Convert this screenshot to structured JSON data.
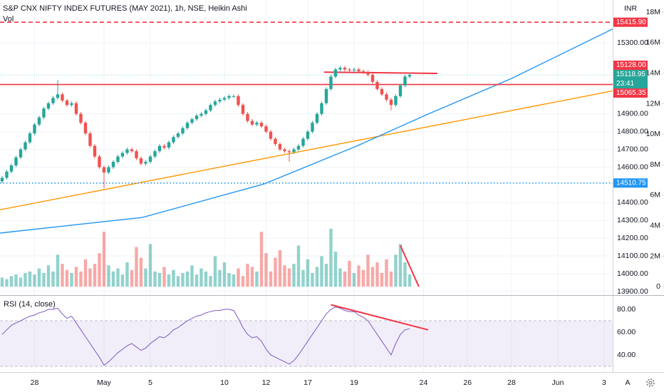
{
  "chart_data": {
    "type": "candlestick",
    "title": "S&P CNX NIFTY INDEX FUTURES (MAY 2021), 1h, NSE, Heikin Ashi",
    "currency": "INR",
    "grid": true,
    "xlim": [
      -0.46,
      131.85
    ],
    "xticks": [
      {
        "value": 7,
        "label": "28"
      },
      {
        "value": 22,
        "label": "May"
      },
      {
        "value": 32,
        "label": "5"
      },
      {
        "value": 48,
        "label": "10"
      },
      {
        "value": 57,
        "label": "12"
      },
      {
        "value": 66,
        "label": "17"
      },
      {
        "value": 76,
        "label": "19"
      },
      {
        "value": 91,
        "label": "24"
      },
      {
        "value": 100.5,
        "label": "26"
      },
      {
        "value": 110,
        "label": "28"
      },
      {
        "value": 120,
        "label": "Jun"
      },
      {
        "value": 130,
        "label": "3"
      }
    ],
    "ylim": [
      13884,
      15541
    ],
    "yticks": [
      {
        "value": 15300,
        "label": "15300.00"
      },
      {
        "value": 14900,
        "label": "14900.00"
      },
      {
        "value": 14800,
        "label": "14800.00"
      },
      {
        "value": 14700,
        "label": "14700.00"
      },
      {
        "value": 14600,
        "label": "14600.00"
      },
      {
        "value": 14400,
        "label": "14400.00"
      },
      {
        "value": 14300,
        "label": "14300.00"
      },
      {
        "value": 14200,
        "label": "14200.00"
      },
      {
        "value": 14100,
        "label": "14100.00"
      },
      {
        "value": 14000,
        "label": "14000.00"
      },
      {
        "value": 13900,
        "label": "13900.00"
      }
    ],
    "up_color": "#26a69a",
    "down_color": "#ef5350",
    "open": [
      14520,
      14540,
      14575,
      14610,
      14655,
      14700,
      14740,
      14790,
      14840,
      14880,
      14930,
      14960,
      14990,
      15010,
      14975,
      14950,
      14960,
      14900,
      14850,
      14790,
      14720,
      14660,
      14600,
      14570,
      14600,
      14630,
      14660,
      14680,
      14700,
      14690,
      14650,
      14620,
      14630,
      14660,
      14690,
      14720,
      14710,
      14740,
      14770,
      14790,
      14820,
      14850,
      14870,
      14890,
      14900,
      14920,
      14950,
      14970,
      14980,
      14990,
      15000,
      15000,
      14950,
      14900,
      14860,
      14840,
      14850,
      14830,
      14800,
      14760,
      14730,
      14700,
      14690,
      14685,
      14700,
      14720,
      14760,
      14800,
      14850,
      14900,
      14960,
      15040,
      15110,
      15150,
      15160,
      15150,
      15145,
      15150,
      15140,
      15135,
      15120,
      15080,
      15040,
      15010,
      14980,
      14950,
      15000,
      15060,
      15110
    ],
    "high": [
      14550,
      14585,
      14620,
      14665,
      14710,
      14750,
      14800,
      14850,
      14890,
      14940,
      14970,
      15000,
      15090,
      15020,
      14985,
      14970,
      14970,
      14910,
      14860,
      14800,
      14730,
      14670,
      14610,
      14610,
      14640,
      14670,
      14690,
      14710,
      14710,
      14700,
      14660,
      14640,
      14670,
      14700,
      14730,
      14730,
      14750,
      14780,
      14800,
      14830,
      14860,
      14880,
      14900,
      14910,
      14930,
      14960,
      14980,
      14990,
      15000,
      15010,
      15010,
      15010,
      14960,
      14910,
      14870,
      14860,
      14860,
      14840,
      14810,
      14770,
      14740,
      14710,
      14700,
      14710,
      14730,
      14770,
      14810,
      14860,
      14910,
      14970,
      15050,
      15120,
      15160,
      15170,
      15170,
      15160,
      15160,
      15160,
      15150,
      15145,
      15130,
      15090,
      15050,
      15020,
      14990,
      15010,
      15070,
      15120,
      15130
    ],
    "low": [
      14510,
      14530,
      14565,
      14600,
      14645,
      14690,
      14730,
      14780,
      14830,
      14870,
      14920,
      14950,
      14980,
      14965,
      14940,
      14940,
      14890,
      14840,
      14780,
      14710,
      14650,
      14590,
      14480,
      14560,
      14590,
      14620,
      14650,
      14670,
      14680,
      14640,
      14610,
      14610,
      14620,
      14650,
      14680,
      14700,
      14700,
      14730,
      14760,
      14780,
      14810,
      14840,
      14860,
      14880,
      14890,
      14910,
      14940,
      14960,
      14970,
      14980,
      14990,
      14940,
      14890,
      14850,
      14830,
      14830,
      14820,
      14790,
      14750,
      14720,
      14690,
      14680,
      14630,
      14675,
      14690,
      14710,
      14750,
      14790,
      14840,
      14890,
      14950,
      15030,
      15100,
      15140,
      15140,
      15135,
      15135,
      15130,
      15125,
      15110,
      15070,
      15030,
      15000,
      14970,
      14920,
      14940,
      14990,
      15050,
      15100
    ],
    "close": [
      14540,
      14575,
      14610,
      14655,
      14700,
      14740,
      14790,
      14840,
      14880,
      14930,
      14960,
      14990,
      15010,
      14975,
      14950,
      14960,
      14900,
      14850,
      14790,
      14720,
      14660,
      14600,
      14570,
      14600,
      14630,
      14660,
      14680,
      14700,
      14690,
      14650,
      14620,
      14630,
      14660,
      14690,
      14720,
      14710,
      14740,
      14770,
      14790,
      14820,
      14850,
      14870,
      14890,
      14900,
      14920,
      14950,
      14970,
      14980,
      14990,
      15000,
      15000,
      14950,
      14900,
      14860,
      14840,
      14850,
      14830,
      14800,
      14760,
      14730,
      14700,
      14690,
      14685,
      14700,
      14720,
      14760,
      14800,
      14850,
      14900,
      14960,
      15040,
      15110,
      15150,
      15160,
      15150,
      15145,
      15150,
      15140,
      15135,
      15120,
      15080,
      15040,
      15010,
      14980,
      14950,
      15000,
      15060,
      15110,
      15119
    ],
    "price_lines": [
      {
        "value": 15415.9,
        "label": "15415.90",
        "color": "#f23645",
        "style": "dashed"
      },
      {
        "value": 15065.35,
        "color": "#f23645",
        "style": "solid"
      },
      {
        "value": 14510.75,
        "color": "#2196f3",
        "style": "dotted"
      }
    ],
    "last_price": {
      "value": 15118.95,
      "countdown": "23:41",
      "color": "#26a69a"
    },
    "trendlines": [
      {
        "color": "#ff9800",
        "x": [
          -0.46,
          132
        ],
        "y": [
          14360,
          15030
        ]
      },
      {
        "color": "#2196f3",
        "x": [
          -0.46,
          30.3,
          56.5,
          76.5,
          92,
          110,
          132
        ],
        "y": [
          14229,
          14317,
          14505,
          14718,
          14899,
          15099,
          15380
        ]
      },
      {
        "color": "#f23645",
        "x": [
          69.5,
          94
        ],
        "y": [
          15135,
          15128
        ],
        "label": "15128.00"
      }
    ],
    "volume": {
      "title": "Vol",
      "ylim": [
        -0.5,
        18.8
      ],
      "yticks": [
        0,
        {
          "value": 2,
          "label": "2M"
        },
        {
          "value": 4,
          "label": "4M"
        },
        {
          "value": 6,
          "label": "6M"
        },
        {
          "value": 8,
          "label": "8M"
        },
        {
          "value": 10,
          "label": "10M"
        },
        {
          "value": 12,
          "label": "12M"
        },
        {
          "value": 14,
          "label": "14M"
        },
        {
          "value": 16,
          "label": "16M"
        },
        {
          "value": 18,
          "label": "18M"
        }
      ],
      "values": [
        0.6,
        0.5,
        0.7,
        0.8,
        0.6,
        0.9,
        1.0,
        0.8,
        1.2,
        0.9,
        1.4,
        1.0,
        2.1,
        1.5,
        1.1,
        0.9,
        1.3,
        1.0,
        1.8,
        1.2,
        1.5,
        2.2,
        3.6,
        1.4,
        1.0,
        1.2,
        0.8,
        1.6,
        1.1,
        2.6,
        1.9,
        1.2,
        2.8,
        1.0,
        0.9,
        1.3,
        0.8,
        1.1,
        0.7,
        0.9,
        1.0,
        1.4,
        0.8,
        1.2,
        1.0,
        0.7,
        2.0,
        1.1,
        1.6,
        0.9,
        0.8,
        1.2,
        0.7,
        1.5,
        1.3,
        1.0,
        3.6,
        2.2,
        1.0,
        1.9,
        2.4,
        1.4,
        1.2,
        1.5,
        2.7,
        1.1,
        1.8,
        0.9,
        1.3,
        2.0,
        1.5,
        3.8,
        2.3,
        1.2,
        1.0,
        1.7,
        0.9,
        1.4,
        1.1,
        2.1,
        1.3,
        1.6,
        0.9,
        1.8,
        1.0,
        2.1,
        2.8,
        1.6,
        0.8
      ],
      "trendline": {
        "color": "#f23645",
        "x": [
          86,
          90
        ],
        "y": [
          2.7,
          0
        ]
      }
    },
    "rsi": {
      "title": "RSI (14, close)",
      "color": "#7e57c2",
      "ylim": [
        25,
        90
      ],
      "band": [
        30,
        70
      ],
      "yticks": [
        {
          "value": 80,
          "label": "80.00"
        },
        {
          "value": 60,
          "label": "60.00"
        },
        {
          "value": 40,
          "label": "40.00"
        }
      ],
      "values": [
        58,
        62,
        66,
        68,
        70,
        72,
        74,
        75,
        77,
        78,
        80,
        80,
        81,
        76,
        72,
        74,
        68,
        62,
        56,
        50,
        44,
        38,
        31,
        34,
        38,
        42,
        45,
        48,
        50,
        47,
        44,
        46,
        50,
        53,
        56,
        55,
        58,
        62,
        64,
        67,
        70,
        72,
        74,
        75,
        77,
        78,
        79,
        79,
        80,
        80,
        79,
        72,
        64,
        58,
        55,
        56,
        52,
        45,
        40,
        38,
        36,
        34,
        32,
        35,
        40,
        46,
        52,
        58,
        64,
        70,
        76,
        80,
        82,
        81,
        79,
        78,
        78,
        75,
        73,
        70,
        64,
        58,
        52,
        46,
        40,
        50,
        58,
        62,
        63
      ],
      "trendline": {
        "color": "#f23645",
        "x": [
          71,
          92
        ],
        "y": [
          84,
          62
        ]
      }
    },
    "scale_mode": "A"
  }
}
